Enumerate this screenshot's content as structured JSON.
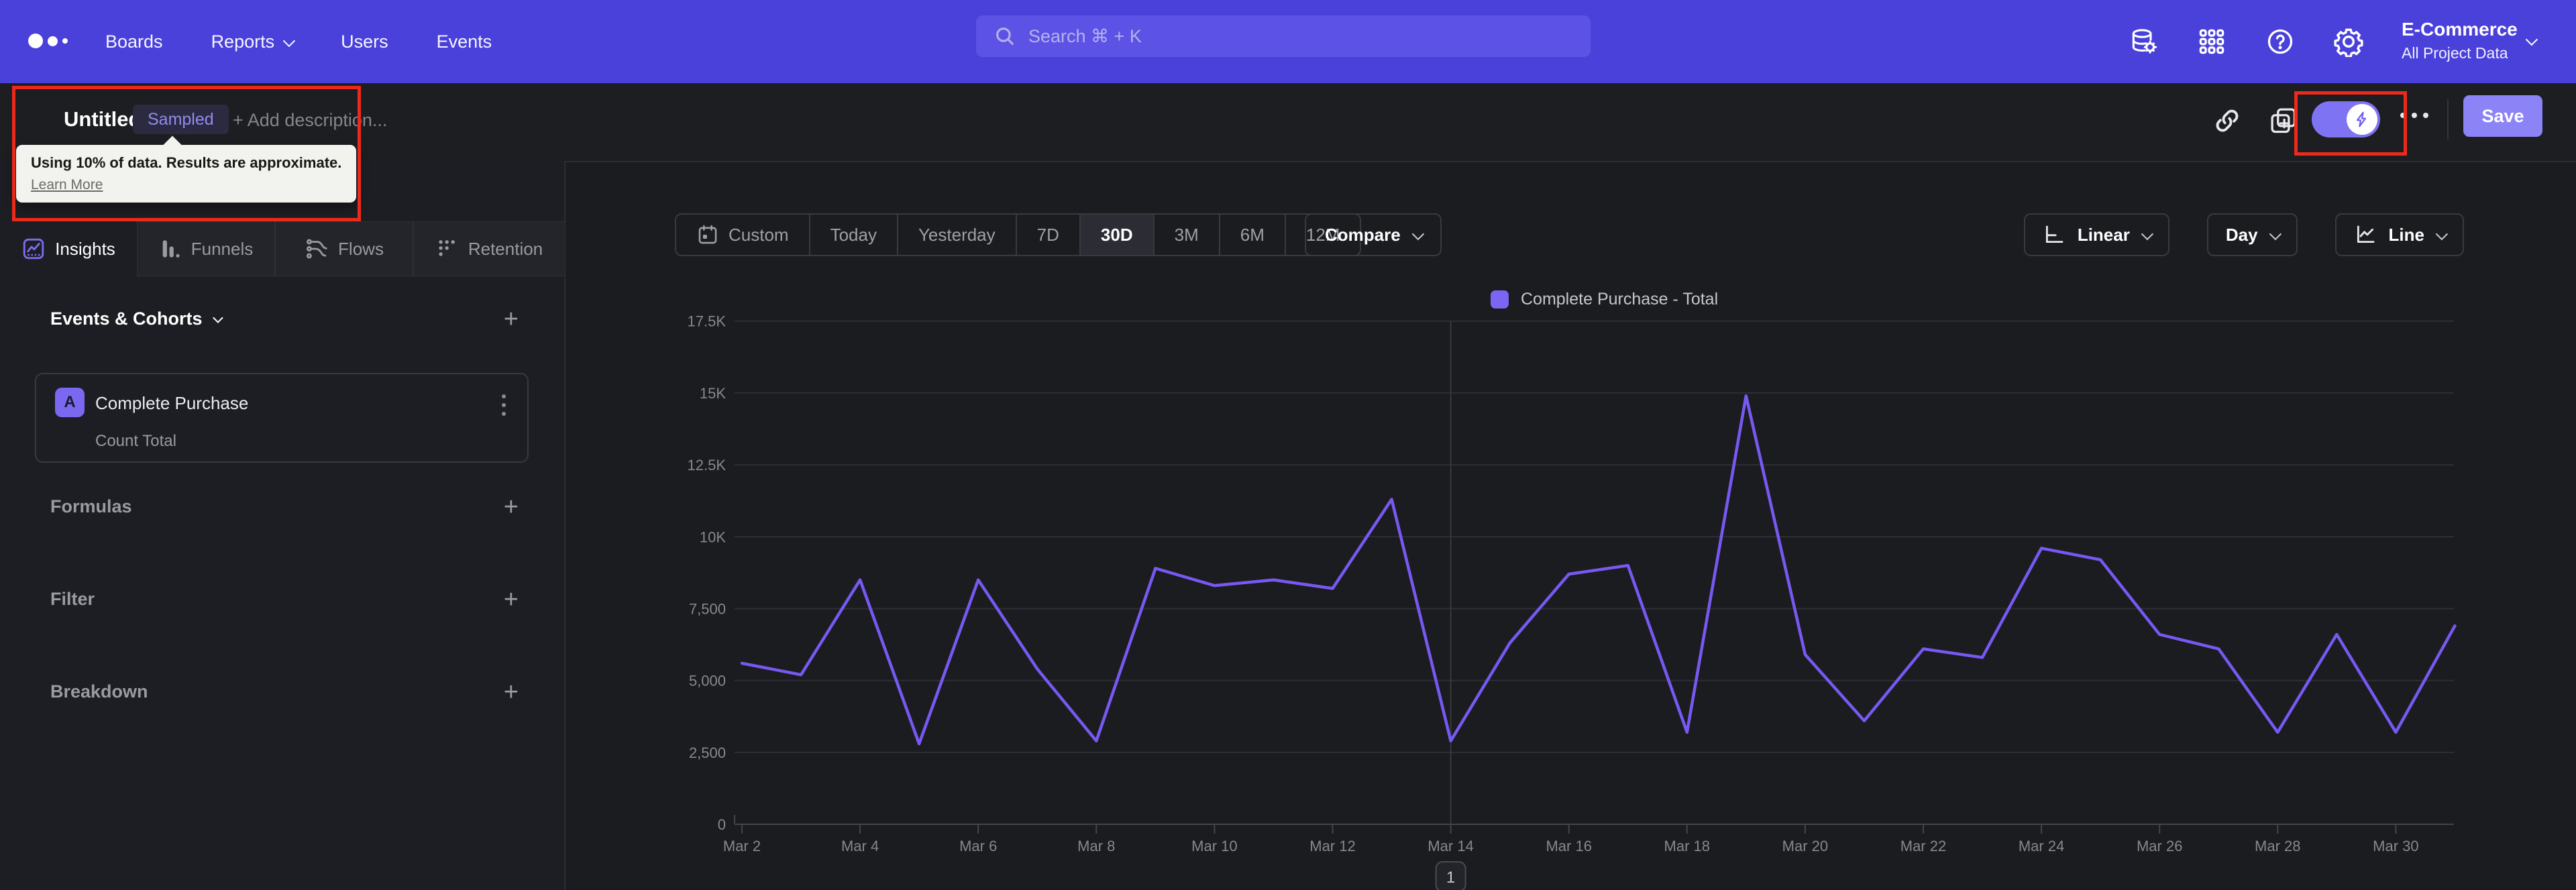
{
  "nav": {
    "links": [
      {
        "label": "Boards",
        "has_menu": false
      },
      {
        "label": "Reports",
        "has_menu": true
      },
      {
        "label": "Users",
        "has_menu": false
      },
      {
        "label": "Events",
        "has_menu": false
      }
    ],
    "search_placeholder": "Search  ⌘ + K",
    "icons": [
      "data-connections-icon",
      "apps-grid-icon",
      "help-icon",
      "settings-gear-icon"
    ],
    "project": {
      "name": "E-Commerce",
      "scope": "All Project Data"
    }
  },
  "toolbar": {
    "title": "Untitled",
    "sampling_badge": "Sampled",
    "add_description": "+ Add description...",
    "save_label": "Save",
    "sampling_tooltip": {
      "text": "Using 10% of data. Results are approximate.",
      "link": "Learn More"
    }
  },
  "report_tabs": [
    {
      "label": "Insights",
      "active": true
    },
    {
      "label": "Funnels",
      "active": false
    },
    {
      "label": "Flows",
      "active": false
    },
    {
      "label": "Retention",
      "active": false
    }
  ],
  "builder": {
    "events_header": "Events & Cohorts",
    "event": {
      "letter": "A",
      "name": "Complete Purchase",
      "metric": "Count Total"
    },
    "sections": [
      {
        "label": "Formulas"
      },
      {
        "label": "Filter"
      },
      {
        "label": "Breakdown"
      }
    ]
  },
  "controls": {
    "date_ranges": [
      {
        "label": "Custom",
        "icon": "calendar-icon",
        "active": false
      },
      {
        "label": "Today",
        "active": false
      },
      {
        "label": "Yesterday",
        "active": false
      },
      {
        "label": "7D",
        "active": false
      },
      {
        "label": "30D",
        "active": true
      },
      {
        "label": "3M",
        "active": false
      },
      {
        "label": "6M",
        "active": false
      },
      {
        "label": "12M",
        "active": false
      }
    ],
    "compare_label": "Compare",
    "value_scale": "Linear",
    "granularity": "Day",
    "chart_type": "Line"
  },
  "chart_data": {
    "type": "line",
    "legend": [
      "Complete Purchase - Total"
    ],
    "legend_position": "top-center",
    "grid": "horizontal",
    "ylim": [
      0,
      17500
    ],
    "ytick_step": 2500,
    "ytick_labels": [
      "0",
      "2,500",
      "5,000",
      "7,500",
      "10K",
      "12.5K",
      "15K",
      "17.5K"
    ],
    "xtick_labels": [
      "Mar 2",
      "Mar 4",
      "Mar 6",
      "Mar 8",
      "Mar 10",
      "Mar 12",
      "Mar 14",
      "Mar 16",
      "Mar 18",
      "Mar 20",
      "Mar 22",
      "Mar 24",
      "Mar 26",
      "Mar 28",
      "Mar 30"
    ],
    "annotation_marker": {
      "label": "1",
      "x": "Mar 14"
    },
    "series": [
      {
        "name": "Complete Purchase - Total",
        "color": "#7759f2",
        "x": [
          "Mar 2",
          "Mar 3",
          "Mar 4",
          "Mar 5",
          "Mar 6",
          "Mar 7",
          "Mar 8",
          "Mar 9",
          "Mar 10",
          "Mar 11",
          "Mar 12",
          "Mar 13",
          "Mar 14",
          "Mar 15",
          "Mar 16",
          "Mar 17",
          "Mar 18",
          "Mar 19",
          "Mar 20",
          "Mar 21",
          "Mar 22",
          "Mar 23",
          "Mar 24",
          "Mar 25",
          "Mar 26",
          "Mar 27",
          "Mar 28",
          "Mar 29",
          "Mar 30",
          "Mar 31"
        ],
        "values": [
          5600,
          5200,
          8500,
          2800,
          8500,
          5400,
          2900,
          8900,
          8300,
          8500,
          8200,
          11300,
          2900,
          6300,
          8700,
          9000,
          3200,
          14900,
          5900,
          3600,
          6100,
          5800,
          9600,
          9200,
          6600,
          6100,
          3200,
          6600,
          3200,
          6900
        ]
      }
    ]
  },
  "colors": {
    "nav_bg": "#4a41da",
    "accent_line": "#7759f2",
    "save_bg": "#8c83f6",
    "annotation_red": "#eb2a1b",
    "sampled_text": "#948af2"
  }
}
